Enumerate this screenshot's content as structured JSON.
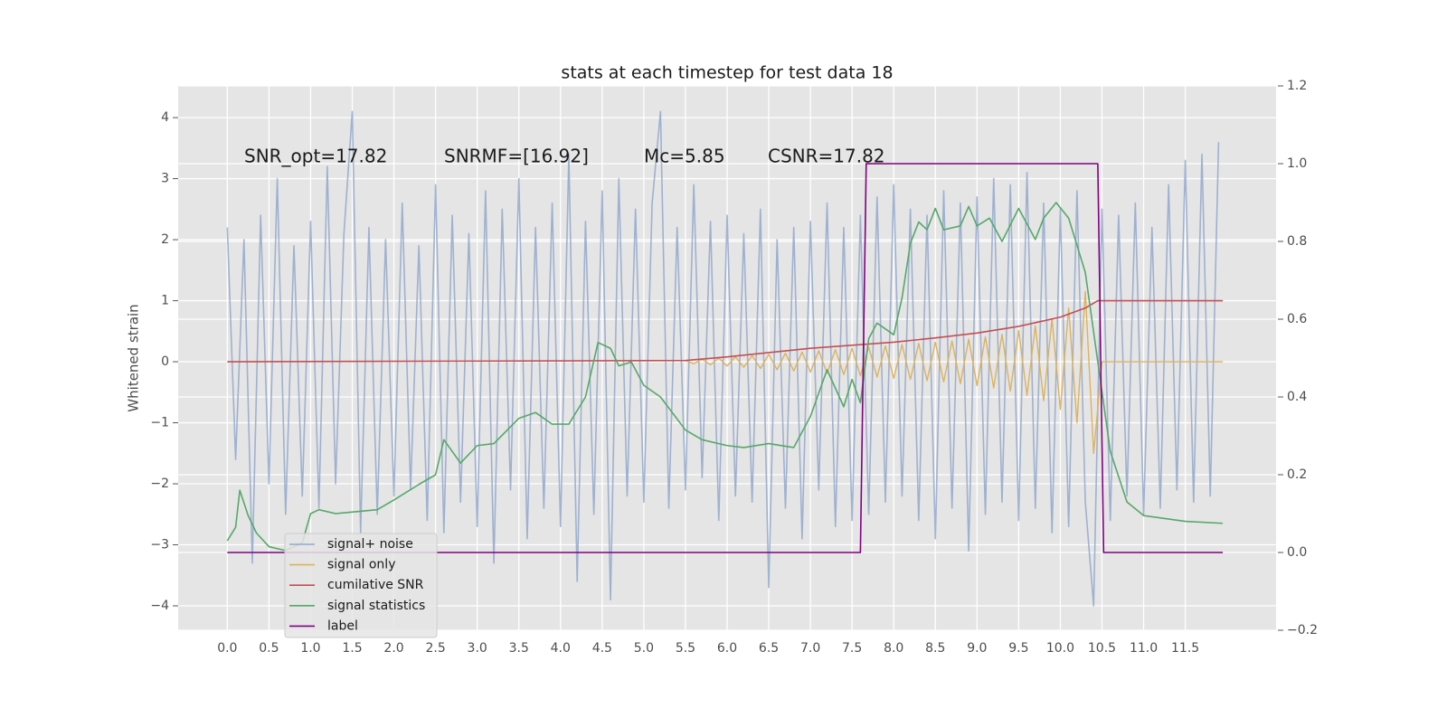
{
  "chart_data": {
    "type": "line",
    "title": "stats at each timestep for test data 18",
    "y_label": "Whitened strain",
    "annotations": [
      "SNR_opt=17.82",
      "SNRMF=[16.92]",
      "Mc=5.85",
      "CSNR=17.82"
    ],
    "grid": true,
    "legend": "lower left",
    "xlim": [
      -0.59,
      12.59
    ],
    "ylim": [
      -4.4,
      4.52
    ],
    "y2lim": [
      -0.2,
      1.2
    ],
    "xticks": [
      {
        "value": 0,
        "label": "0.0"
      },
      0.5,
      {
        "value": 1,
        "label": "1.0"
      },
      1.5,
      {
        "value": 2,
        "label": "2.0"
      },
      2.5,
      {
        "value": 3,
        "label": "3.0"
      },
      3.5,
      {
        "value": 4,
        "label": "4.0"
      },
      4.5,
      {
        "value": 5,
        "label": "5.0"
      },
      5.5,
      {
        "value": 6,
        "label": "6.0"
      },
      6.5,
      {
        "value": 7,
        "label": "7.0"
      },
      7.5,
      {
        "value": 8,
        "label": "8.0"
      },
      8.5,
      {
        "value": 9,
        "label": "9.0"
      },
      9.5,
      {
        "value": 10,
        "label": "10.0"
      },
      10.5,
      {
        "value": 11,
        "label": "11.0"
      },
      11.5
    ],
    "yticks": [
      {
        "value": -4,
        "label": "−4"
      },
      {
        "value": -3,
        "label": "−3"
      },
      {
        "value": -2,
        "label": "−2"
      },
      {
        "value": -1,
        "label": "−1"
      },
      0,
      1,
      2,
      3,
      4
    ],
    "y2ticks": [
      {
        "value": -0.2,
        "label": "−0.2"
      },
      {
        "value": 0,
        "label": "0.0"
      },
      0.2,
      0.4,
      0.6,
      0.8,
      {
        "value": 1,
        "label": "1.0"
      },
      1.2
    ],
    "series": [
      {
        "name": "signal+ noise",
        "color": "#92a8cd",
        "x": [
          0,
          0.1,
          0.2,
          0.3,
          0.4,
          0.5,
          0.6,
          0.7,
          0.8,
          0.9,
          1,
          1.1,
          1.2,
          1.3,
          1.4,
          1.5,
          1.6,
          1.7,
          1.8,
          1.9,
          2,
          2.1,
          2.2,
          2.3,
          2.4,
          2.5,
          2.6,
          2.7,
          2.8,
          2.9,
          3,
          3.1,
          3.2,
          3.3,
          3.4,
          3.5,
          3.6,
          3.7,
          3.8,
          3.9,
          4,
          4.1,
          4.2,
          4.3,
          4.4,
          4.5,
          4.6,
          4.7,
          4.8,
          4.9,
          5,
          5.1,
          5.2,
          5.3,
          5.4,
          5.5,
          5.6,
          5.7,
          5.8,
          5.9,
          6,
          6.1,
          6.2,
          6.3,
          6.4,
          6.5,
          6.6,
          6.7,
          6.8,
          6.9,
          7,
          7.1,
          7.2,
          7.3,
          7.4,
          7.5,
          7.6,
          7.7,
          7.8,
          7.9,
          8,
          8.1,
          8.2,
          8.3,
          8.4,
          8.5,
          8.6,
          8.7,
          8.8,
          8.9,
          9,
          9.1,
          9.2,
          9.3,
          9.4,
          9.5,
          9.6,
          9.7,
          9.8,
          9.9,
          10,
          10.1,
          10.2,
          10.3,
          10.4,
          10.5,
          10.6,
          10.7,
          10.8,
          10.9,
          11,
          11.1,
          11.2,
          11.3,
          11.4,
          11.5,
          11.6,
          11.7,
          11.8,
          11.9
        ],
        "values": [
          2.2,
          -1.6,
          2.0,
          -3.3,
          2.4,
          -2.0,
          3.0,
          -2.5,
          1.9,
          -2.2,
          2.3,
          -2.4,
          3.2,
          -2.0,
          2.1,
          4.1,
          -2.8,
          2.2,
          -2.5,
          2.0,
          -2.2,
          2.6,
          -2.1,
          1.9,
          -2.6,
          2.9,
          -2.8,
          2.4,
          -2.3,
          2.1,
          -2.7,
          2.8,
          -3.3,
          2.5,
          -2.1,
          3.0,
          -2.9,
          2.2,
          -2.4,
          2.6,
          -2.7,
          3.4,
          -3.6,
          2.3,
          -2.5,
          2.8,
          -3.9,
          3.0,
          -2.2,
          2.5,
          -2.3,
          2.6,
          4.1,
          -2.4,
          2.2,
          -2.1,
          2.9,
          -1.9,
          2.3,
          -2.6,
          2.4,
          -2.2,
          2.1,
          -2.3,
          2.5,
          -3.7,
          2.0,
          -2.4,
          2.2,
          -2.9,
          2.3,
          -2.1,
          2.6,
          -2.7,
          2.2,
          -2.6,
          2.4,
          -2.5,
          2.7,
          -2.3,
          2.9,
          -2.2,
          2.5,
          -2.6,
          2.4,
          -2.9,
          2.8,
          -2.4,
          2.6,
          -3.1,
          2.7,
          -2.5,
          3.0,
          -2.3,
          2.9,
          -2.6,
          3.1,
          -2.4,
          2.6,
          -2.8,
          2.5,
          -2.7,
          2.8,
          -2.3,
          -4.0,
          2.5,
          -2.6,
          2.4,
          -2.2,
          2.6,
          -2.5,
          2.2,
          -2.4,
          2.9,
          -2.1,
          3.3,
          -2.3,
          3.4,
          -2.2,
          3.6
        ]
      },
      {
        "name": "signal only",
        "color": "#ddb25d",
        "x": [
          5.5,
          5.6,
          5.7,
          5.8,
          5.9,
          6,
          6.1,
          6.2,
          6.3,
          6.4,
          6.5,
          6.6,
          6.7,
          6.8,
          6.9,
          7,
          7.1,
          7.2,
          7.3,
          7.4,
          7.5,
          7.6,
          7.7,
          7.8,
          7.9,
          8,
          8.1,
          8.2,
          8.3,
          8.4,
          8.5,
          8.6,
          8.7,
          8.8,
          8.9,
          9,
          9.1,
          9.2,
          9.3,
          9.4,
          9.5,
          9.6,
          9.7,
          9.8,
          9.9,
          10,
          10.1,
          10.2,
          10.3,
          10.4,
          10.5,
          11.95
        ],
        "values": [
          0.02,
          -0.03,
          0.04,
          -0.05,
          0.06,
          -0.07,
          0.08,
          -0.09,
          0.1,
          -0.11,
          0.12,
          -0.13,
          0.14,
          -0.15,
          0.16,
          -0.17,
          0.18,
          -0.19,
          0.2,
          -0.21,
          0.22,
          -0.23,
          0.24,
          -0.25,
          0.26,
          -0.27,
          0.28,
          -0.29,
          0.3,
          -0.31,
          0.32,
          -0.33,
          0.34,
          -0.36,
          0.37,
          -0.39,
          0.41,
          -0.43,
          0.45,
          -0.48,
          0.51,
          -0.55,
          0.59,
          -0.64,
          0.7,
          -0.78,
          0.88,
          -1.0,
          1.15,
          -1.5,
          0,
          0
        ]
      },
      {
        "name": "cumilative SNR",
        "color": "#c44e52",
        "x": [
          0,
          5.5,
          6,
          6.5,
          7,
          7.5,
          8,
          8.5,
          9,
          9.5,
          10,
          10.3,
          10.45,
          10.5,
          11.95
        ],
        "values": [
          0,
          0.02,
          0.08,
          0.15,
          0.22,
          0.27,
          0.32,
          0.39,
          0.47,
          0.58,
          0.73,
          0.88,
          1.0,
          1.0,
          1.0
        ]
      },
      {
        "name": "signal statistics",
        "color": "#55a868",
        "axis": "y2",
        "x": [
          0,
          0.1,
          0.15,
          0.25,
          0.35,
          0.5,
          0.7,
          0.9,
          1,
          1.1,
          1.3,
          1.8,
          2,
          2.3,
          2.5,
          2.6,
          2.8,
          3,
          3.2,
          3.5,
          3.7,
          3.9,
          4.1,
          4.3,
          4.45,
          4.6,
          4.7,
          4.85,
          5,
          5.2,
          5.5,
          5.7,
          6,
          6.2,
          6.5,
          6.8,
          7,
          7.2,
          7.4,
          7.5,
          7.6,
          7.7,
          7.8,
          8,
          8.1,
          8.2,
          8.3,
          8.4,
          8.5,
          8.6,
          8.8,
          8.9,
          9,
          9.15,
          9.3,
          9.5,
          9.7,
          9.8,
          9.95,
          10.1,
          10.3,
          10.45,
          10.6,
          10.8,
          11,
          11.5,
          11.95
        ],
        "values": [
          0.03,
          0.065,
          0.16,
          0.095,
          0.05,
          0.015,
          0.005,
          0.025,
          0.1,
          0.11,
          0.1,
          0.11,
          0.135,
          0.175,
          0.2,
          0.29,
          0.23,
          0.275,
          0.28,
          0.345,
          0.36,
          0.33,
          0.33,
          0.4,
          0.54,
          0.525,
          0.48,
          0.49,
          0.43,
          0.4,
          0.315,
          0.29,
          0.275,
          0.27,
          0.28,
          0.27,
          0.35,
          0.47,
          0.375,
          0.445,
          0.385,
          0.55,
          0.59,
          0.56,
          0.655,
          0.795,
          0.85,
          0.83,
          0.885,
          0.83,
          0.84,
          0.89,
          0.84,
          0.86,
          0.8,
          0.885,
          0.805,
          0.86,
          0.9,
          0.86,
          0.72,
          0.49,
          0.26,
          0.13,
          0.095,
          0.08,
          0.075
        ]
      },
      {
        "name": "label",
        "color": "#800080",
        "axis": "y2",
        "x": [
          0,
          7.6,
          7.67,
          10.45,
          10.52,
          11.95
        ],
        "values": [
          0,
          0,
          1,
          1,
          0,
          0
        ]
      }
    ]
  }
}
